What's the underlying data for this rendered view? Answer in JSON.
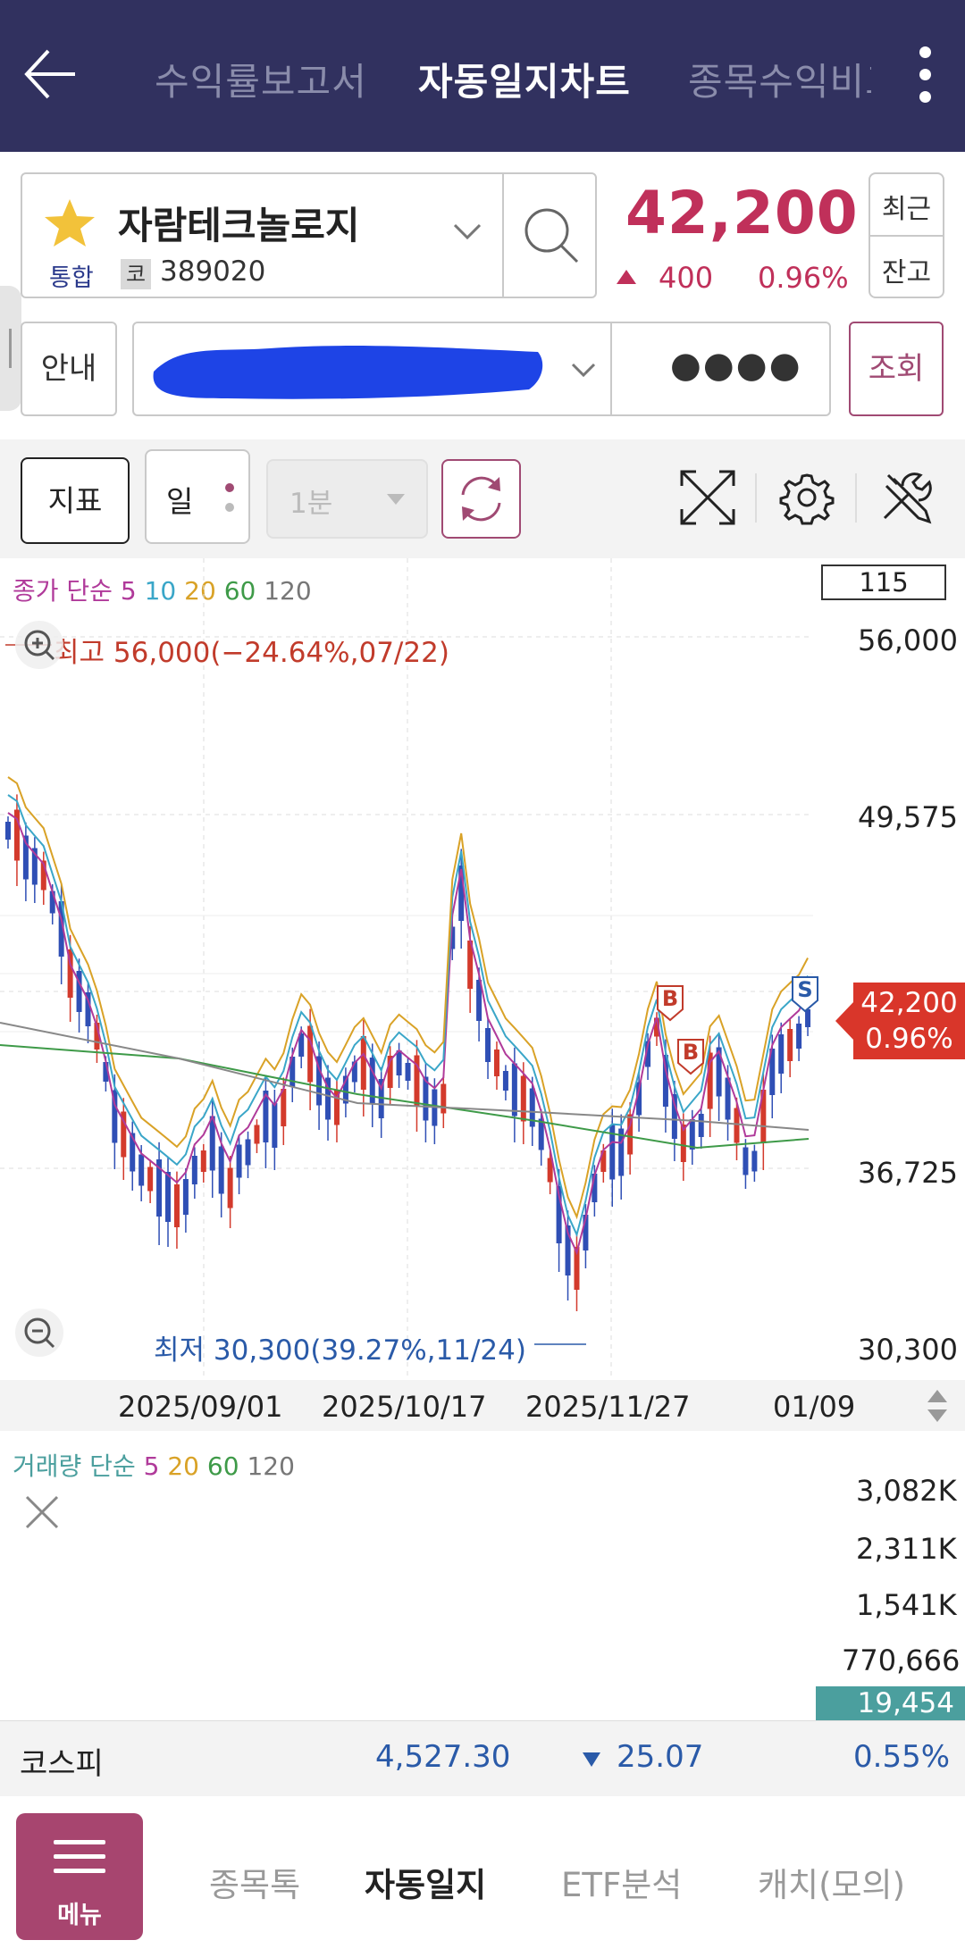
{
  "topbar": {
    "tabs": [
      "수익률보고서",
      "자동일지차트",
      "종목수익비교"
    ],
    "active_tab": "자동일지차트"
  },
  "stock": {
    "name": "자람테크놀로지",
    "market": "통합",
    "code_prefix": "코",
    "code": "389020",
    "price": "42,200",
    "change": "400",
    "change_pct": "0.96%",
    "direction": "up",
    "up_color": "#c0305a"
  },
  "side_button": {
    "line1": "최근",
    "line2": "잔고"
  },
  "account": {
    "guide_label": "안내",
    "account_number": "[redacted]",
    "password_mask": "●●●●",
    "query_label": "조회"
  },
  "toolbar": {
    "indicator_label": "지표",
    "period_label": "일",
    "minute_label": "1분"
  },
  "price_chart": {
    "legend_prefix": "종가 단순",
    "legend_periods": [
      {
        "label": "5",
        "color": "#b03a9a"
      },
      {
        "label": "10",
        "color": "#3aa6c8"
      },
      {
        "label": "20",
        "color": "#d9a227"
      },
      {
        "label": "60",
        "color": "#3e9a48"
      },
      {
        "label": "120",
        "color": "#777777"
      }
    ],
    "candle_count": "115",
    "y_labels": [
      "56,000",
      "49,575",
      "36,725",
      "30,300"
    ],
    "high_label": "최고 56,000(−24.64%,07/22)",
    "low_label": "최저 30,300(39.27%,11/24)",
    "current_price": "42,200",
    "current_pct": "0.96%",
    "x_labels": [
      "2025/09/01",
      "2025/10/17",
      "2025/11/27",
      "01/09"
    ],
    "signals": [
      "B",
      "B",
      "S"
    ]
  },
  "volume_chart": {
    "legend_prefix": "거래량 단순",
    "legend_periods": [
      {
        "label": "5",
        "color": "#b03a9a"
      },
      {
        "label": "20",
        "color": "#d9a227"
      },
      {
        "label": "60",
        "color": "#3e9a48"
      },
      {
        "label": "120",
        "color": "#777777"
      }
    ],
    "y_labels": [
      "3,082K",
      "2,311K",
      "1,541K",
      "770,666"
    ],
    "current_volume": "19,454"
  },
  "index": {
    "name": "코스피",
    "value": "4,527.30",
    "change": "25.07",
    "change_pct": "0.55%",
    "direction": "down"
  },
  "bottom_nav": {
    "menu_label": "메뉴",
    "items": [
      "종목톡",
      "자동일지",
      "ETF분석",
      "캐치(모의)"
    ],
    "active": "자동일지"
  }
}
